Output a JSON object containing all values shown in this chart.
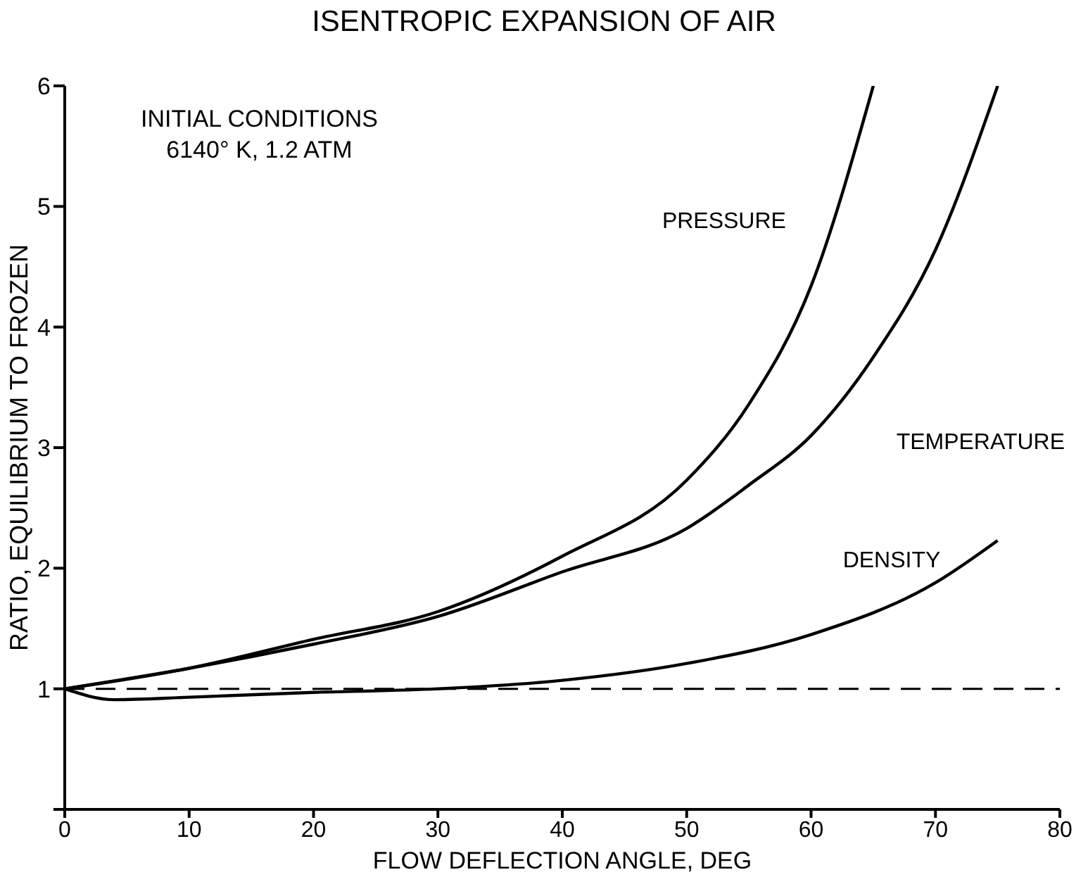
{
  "chart_data": {
    "type": "line",
    "title": "ISENTROPIC EXPANSION OF AIR",
    "xlabel": "FLOW DEFLECTION ANGLE, DEG",
    "ylabel": "RATIO, EQUILIBRIUM TO FROZEN",
    "annotations": [
      "INITIAL CONDITIONS\n6140° K, 1.2 ATM"
    ],
    "xlim": [
      0,
      80
    ],
    "ylim": [
      0,
      6
    ],
    "xticks": [
      0,
      10,
      20,
      30,
      40,
      50,
      60,
      70,
      80
    ],
    "yticks": [
      {
        "value": 0,
        "label": null
      },
      1,
      2,
      3,
      4,
      5,
      6
    ],
    "grid": false,
    "legend": false,
    "marker": "none",
    "line_style": "solid",
    "ref_lines": [
      {
        "axis": "y",
        "value": 1,
        "line_style": "dashed",
        "color": "#000000"
      }
    ],
    "series": [
      {
        "name": "PRESSURE",
        "color": "#000000",
        "x": [
          0,
          10,
          20,
          30,
          40,
          50,
          55,
          60,
          65
        ],
        "values": [
          1,
          1.17,
          1.41,
          1.64,
          2.1,
          2.73,
          3.36,
          4.34,
          6
        ]
      },
      {
        "name": "TEMPERATURE",
        "color": "#000000",
        "x": [
          0,
          10,
          20,
          30,
          40,
          50,
          55,
          60,
          65,
          70,
          75
        ],
        "values": [
          1,
          1.17,
          1.37,
          1.6,
          1.97,
          2.33,
          2.69,
          3.1,
          3.75,
          4.64,
          6
        ]
      },
      {
        "name": "DENSITY",
        "color": "#000000",
        "x": [
          0,
          4,
          10,
          20,
          30,
          40,
          50,
          60,
          70,
          75
        ],
        "values": [
          1,
          0.91,
          0.93,
          0.97,
          1,
          1.07,
          1.21,
          1.45,
          1.88,
          2.23
        ]
      }
    ]
  }
}
